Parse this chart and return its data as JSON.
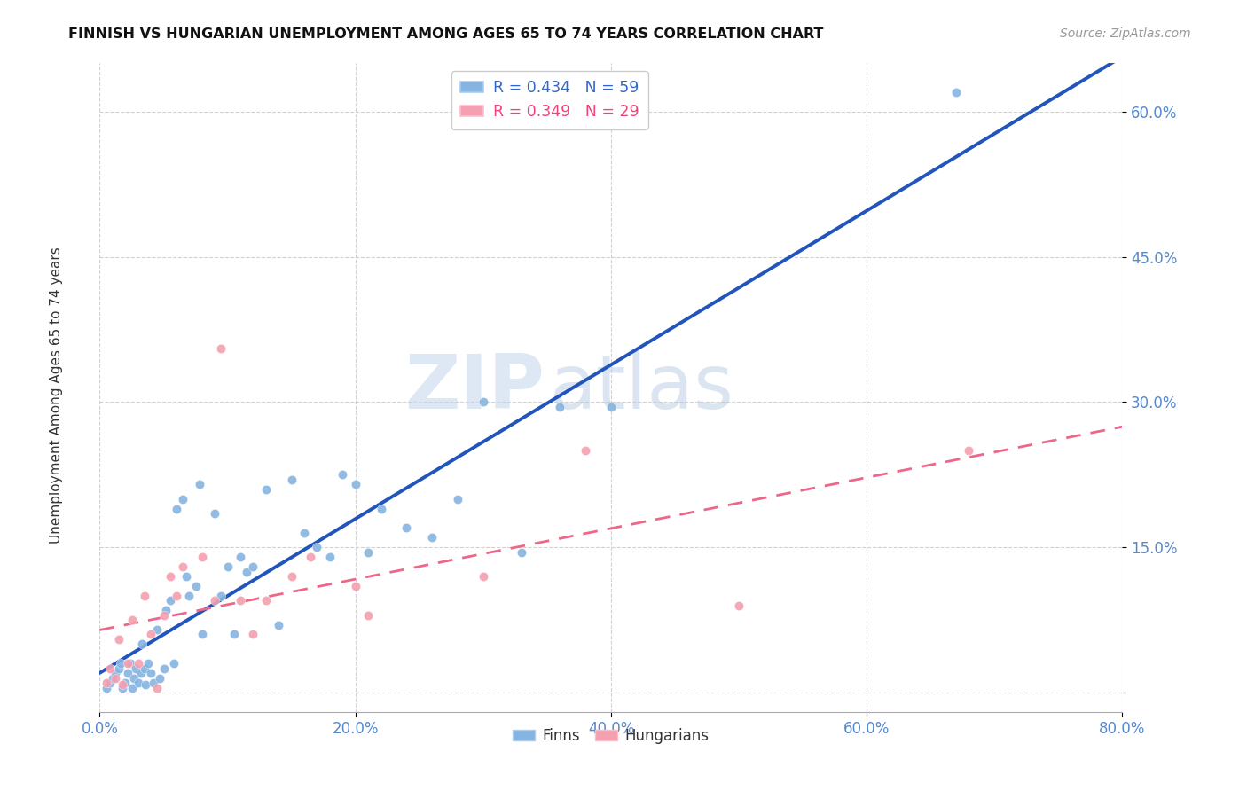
{
  "title": "FINNISH VS HUNGARIAN UNEMPLOYMENT AMONG AGES 65 TO 74 YEARS CORRELATION CHART",
  "source": "Source: ZipAtlas.com",
  "ylabel": "Unemployment Among Ages 65 to 74 years",
  "xlim": [
    0.0,
    0.8
  ],
  "ylim": [
    -0.02,
    0.65
  ],
  "xticks": [
    0.0,
    0.2,
    0.4,
    0.6,
    0.8
  ],
  "yticks": [
    0.0,
    0.15,
    0.3,
    0.45,
    0.6
  ],
  "xticklabels": [
    "0.0%",
    "20.0%",
    "40.0%",
    "60.0%",
    "80.0%"
  ],
  "yticklabels": [
    "",
    "15.0%",
    "30.0%",
    "45.0%",
    "60.0%"
  ],
  "finns_color": "#85B4E0",
  "hungarians_color": "#F4A0B0",
  "trend_finns_color": "#2255BB",
  "trend_hungarians_color": "#EE6688",
  "legend_R_finns": "0.434",
  "legend_N_finns": "59",
  "legend_R_hung": "0.349",
  "legend_N_hung": "29",
  "watermark_zip": "ZIP",
  "watermark_atlas": "atlas",
  "finns_x": [
    0.005,
    0.008,
    0.01,
    0.012,
    0.015,
    0.016,
    0.018,
    0.02,
    0.022,
    0.024,
    0.025,
    0.027,
    0.028,
    0.03,
    0.032,
    0.033,
    0.035,
    0.036,
    0.038,
    0.04,
    0.042,
    0.045,
    0.047,
    0.05,
    0.052,
    0.055,
    0.058,
    0.06,
    0.065,
    0.068,
    0.07,
    0.075,
    0.078,
    0.08,
    0.09,
    0.095,
    0.1,
    0.105,
    0.11,
    0.115,
    0.12,
    0.13,
    0.14,
    0.15,
    0.16,
    0.17,
    0.18,
    0.19,
    0.2,
    0.21,
    0.22,
    0.24,
    0.26,
    0.28,
    0.3,
    0.33,
    0.36,
    0.4,
    0.67
  ],
  "finns_y": [
    0.005,
    0.01,
    0.015,
    0.02,
    0.025,
    0.03,
    0.005,
    0.01,
    0.02,
    0.03,
    0.005,
    0.015,
    0.025,
    0.01,
    0.02,
    0.05,
    0.025,
    0.008,
    0.03,
    0.02,
    0.01,
    0.065,
    0.015,
    0.025,
    0.085,
    0.095,
    0.03,
    0.19,
    0.2,
    0.12,
    0.1,
    0.11,
    0.215,
    0.06,
    0.185,
    0.1,
    0.13,
    0.06,
    0.14,
    0.125,
    0.13,
    0.21,
    0.07,
    0.22,
    0.165,
    0.15,
    0.14,
    0.225,
    0.215,
    0.145,
    0.19,
    0.17,
    0.16,
    0.2,
    0.3,
    0.145,
    0.295,
    0.295,
    0.62
  ],
  "hungarians_x": [
    0.005,
    0.008,
    0.012,
    0.015,
    0.018,
    0.022,
    0.025,
    0.03,
    0.035,
    0.04,
    0.045,
    0.05,
    0.055,
    0.06,
    0.065,
    0.08,
    0.09,
    0.095,
    0.11,
    0.12,
    0.13,
    0.15,
    0.165,
    0.2,
    0.21,
    0.3,
    0.38,
    0.5,
    0.68
  ],
  "hungarians_y": [
    0.01,
    0.025,
    0.015,
    0.055,
    0.008,
    0.03,
    0.075,
    0.03,
    0.1,
    0.06,
    0.005,
    0.08,
    0.12,
    0.1,
    0.13,
    0.14,
    0.095,
    0.355,
    0.095,
    0.06,
    0.095,
    0.12,
    0.14,
    0.11,
    0.08,
    0.12,
    0.25,
    0.09,
    0.25
  ]
}
